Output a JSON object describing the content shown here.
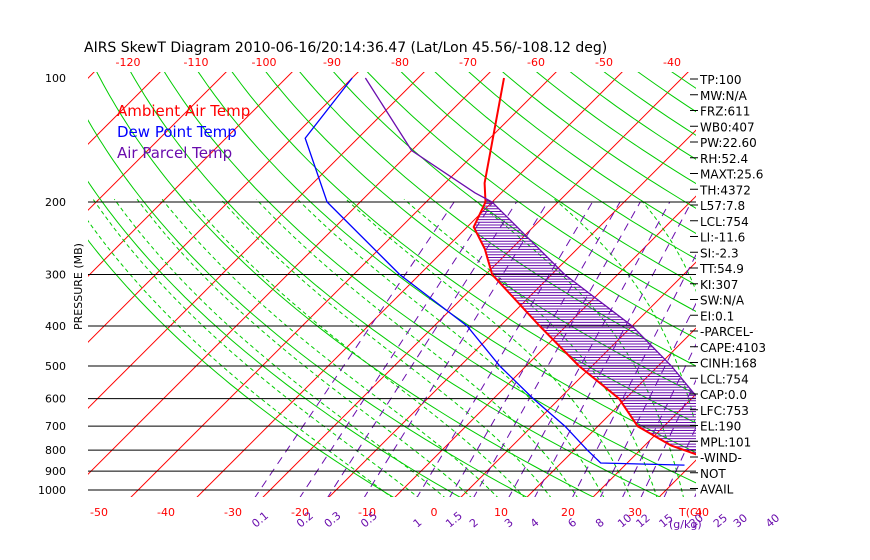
{
  "chart_data": {
    "type": "line",
    "title": "AIRS SkewT Diagram 2010-06-16/20:14:36.47 (Lat/Lon 45.56/-108.12 deg)",
    "ylabel": "PRESSURE (MB)",
    "xlabel": "T(C)",
    "mixing_ratio_unit": "(g/kg)",
    "pressure_ticks": [
      "100",
      "200",
      "300",
      "400",
      "500",
      "600",
      "700",
      "800",
      "900",
      "1000"
    ],
    "pressure_ticks_hpa": [
      100,
      200,
      300,
      400,
      500,
      600,
      700,
      800,
      900,
      1000
    ],
    "temp_ticks_top": [
      -120,
      -110,
      -100,
      -90,
      -80,
      -70,
      -60,
      -50,
      -40
    ],
    "temp_ticks_bottom": [
      -50,
      -40,
      -30,
      -20,
      -10,
      0,
      10,
      20,
      30,
      40
    ],
    "mixing_ratio_labels": [
      "0.1",
      "0.2",
      "0.3",
      "0.5",
      "1",
      "1.5",
      "2",
      "3",
      "4",
      "6",
      "8",
      "10",
      "12",
      "15",
      "20",
      "25",
      "30",
      "40"
    ],
    "legend": [
      {
        "name": "Ambient Air Temp",
        "color": "#ff0000"
      },
      {
        "name": "Dew Point Temp",
        "color": "#0000ff"
      },
      {
        "name": "Air Parcel Temp",
        "color": "#6a0dad"
      }
    ],
    "series": [
      {
        "name": "Ambient Air Temp",
        "color": "#ff0000",
        "points": [
          {
            "p": 880,
            "t": 34
          },
          {
            "p": 875,
            "t": 26
          },
          {
            "p": 780,
            "t": 14
          },
          {
            "p": 700,
            "t": 6
          },
          {
            "p": 600,
            "t": -1
          },
          {
            "p": 500,
            "t": -12
          },
          {
            "p": 400,
            "t": -24
          },
          {
            "p": 300,
            "t": -39
          },
          {
            "p": 260,
            "t": -44
          },
          {
            "p": 230,
            "t": -49
          },
          {
            "p": 200,
            "t": -51
          },
          {
            "p": 180,
            "t": -54
          },
          {
            "p": 100,
            "t": -67
          }
        ]
      },
      {
        "name": "Dew Point Temp",
        "color": "#0000ff",
        "points": [
          {
            "p": 870,
            "t": 19
          },
          {
            "p": 860,
            "t": 6
          },
          {
            "p": 800,
            "t": 2
          },
          {
            "p": 700,
            "t": -5
          },
          {
            "p": 600,
            "t": -14
          },
          {
            "p": 500,
            "t": -24
          },
          {
            "p": 400,
            "t": -35
          },
          {
            "p": 300,
            "t": -53
          },
          {
            "p": 200,
            "t": -75
          },
          {
            "p": 140,
            "t": -88
          },
          {
            "p": 100,
            "t": -90
          }
        ]
      },
      {
        "name": "Air Parcel Temp",
        "color": "#6a0dad",
        "points": [
          {
            "p": 880,
            "t": 34
          },
          {
            "p": 850,
            "t": 23
          },
          {
            "p": 754,
            "t": 17
          },
          {
            "p": 700,
            "t": 16
          },
          {
            "p": 600,
            "t": 11
          },
          {
            "p": 500,
            "t": 2
          },
          {
            "p": 400,
            "t": -10
          },
          {
            "p": 300,
            "t": -28
          },
          {
            "p": 200,
            "t": -50
          },
          {
            "p": 190,
            "t": -54
          },
          {
            "p": 150,
            "t": -70
          },
          {
            "p": 100,
            "t": -88
          }
        ]
      }
    ],
    "background_line_colors": {
      "isotherm": "#ff0000",
      "dry_adiabat": "#00cc00",
      "moist_adiabat": "#00cc00",
      "mixing_ratio": "#6a0dad",
      "isobar": "#000000",
      "cape_fill": "#6a0dad"
    },
    "stats": [
      "TP:100",
      "MW:N/A",
      "FRZ:611",
      "WB0:407",
      "PW:22.60",
      "RH:52.4",
      "MAXT:25.6",
      "TH:4372",
      "L57:7.8",
      "LCL:754",
      "LI:-11.6",
      "SI:-2.3",
      "TT:54.9",
      "KI:307",
      "SW:N/A",
      "EI:0.1",
      "-PARCEL-",
      "CAPE:4103",
      "CINH:168",
      "LCL:754",
      "CAP:0.0",
      "LFC:753",
      "EL:190",
      "MPL:101",
      "-WIND-",
      "NOT",
      "AVAIL"
    ]
  }
}
